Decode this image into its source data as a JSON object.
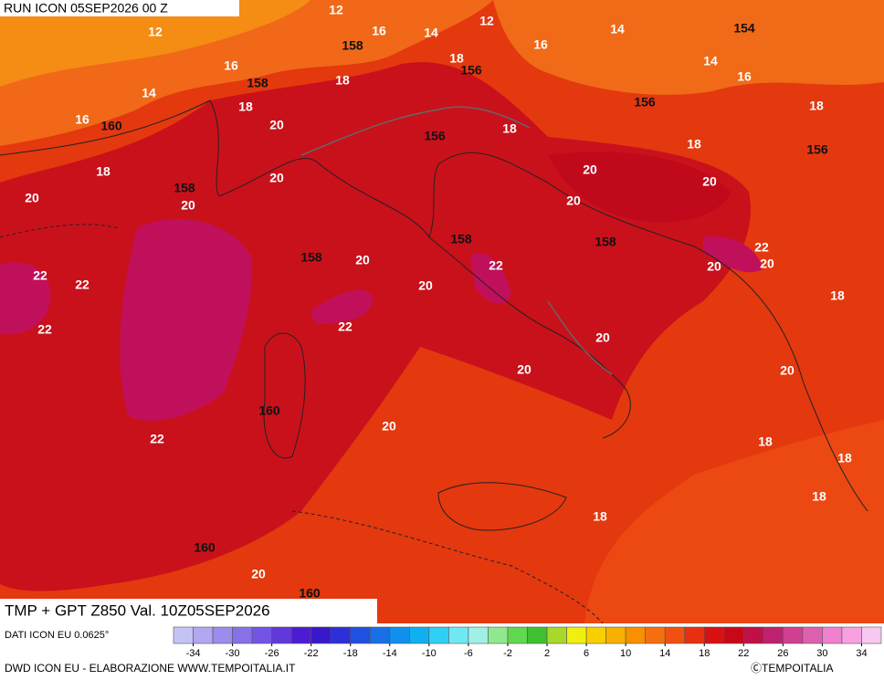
{
  "header": {
    "run": "RUN ICON 05SEP2026 00 Z"
  },
  "map": {
    "title": "TMP + GPT Z850 Val. 10Z05SEP2026",
    "temperature_labels": [
      "12",
      "12",
      "12",
      "16",
      "14",
      "16",
      "14",
      "14",
      "16",
      "16",
      "14",
      "18",
      "18",
      "18",
      "16",
      "20",
      "18",
      "18",
      "18",
      "18",
      "20",
      "20",
      "20",
      "20",
      "20",
      "20",
      "22",
      "20",
      "20",
      "22",
      "20",
      "22",
      "22",
      "20",
      "18",
      "22",
      "22",
      "20",
      "20",
      "20",
      "20",
      "22",
      "18",
      "18",
      "18",
      "18",
      "20"
    ],
    "geopotential_labels": [
      "154",
      "158",
      "156",
      "158",
      "160",
      "156",
      "156",
      "156",
      "158",
      "158",
      "158",
      "158",
      "160",
      "160",
      "160"
    ]
  },
  "colorbar": {
    "range": [
      -36,
      36
    ],
    "ticks": [
      -34,
      -30,
      -26,
      -22,
      -18,
      -14,
      -10,
      -6,
      -2,
      2,
      6,
      10,
      14,
      18,
      22,
      26,
      30,
      34
    ],
    "colors": [
      "#c4c4f4",
      "#b0a8f0",
      "#9c8cec",
      "#8870e8",
      "#7454e4",
      "#6038dc",
      "#4c1cd4",
      "#3818cc",
      "#2c30d8",
      "#2050e0",
      "#1870e8",
      "#1090ec",
      "#10b0f0",
      "#30d0f4",
      "#70e8f4",
      "#a0f0e8",
      "#90e890",
      "#60d850",
      "#40c030",
      "#a8d828",
      "#f0f010",
      "#f8d000",
      "#f8b000",
      "#f89000",
      "#f47010",
      "#f05010",
      "#e83010",
      "#d81010",
      "#c80818",
      "#c01048",
      "#c02070",
      "#d04090",
      "#e060b0",
      "#f080d0",
      "#f8a0e0",
      "#f8c8f0"
    ]
  },
  "footer": {
    "source": "DATI ICON EU 0.0625°",
    "credit": "DWD ICON EU - ELABORAZIONE WWW.TEMPOITALIA.IT",
    "copyright": "ⒸTEMPOITALIA"
  }
}
